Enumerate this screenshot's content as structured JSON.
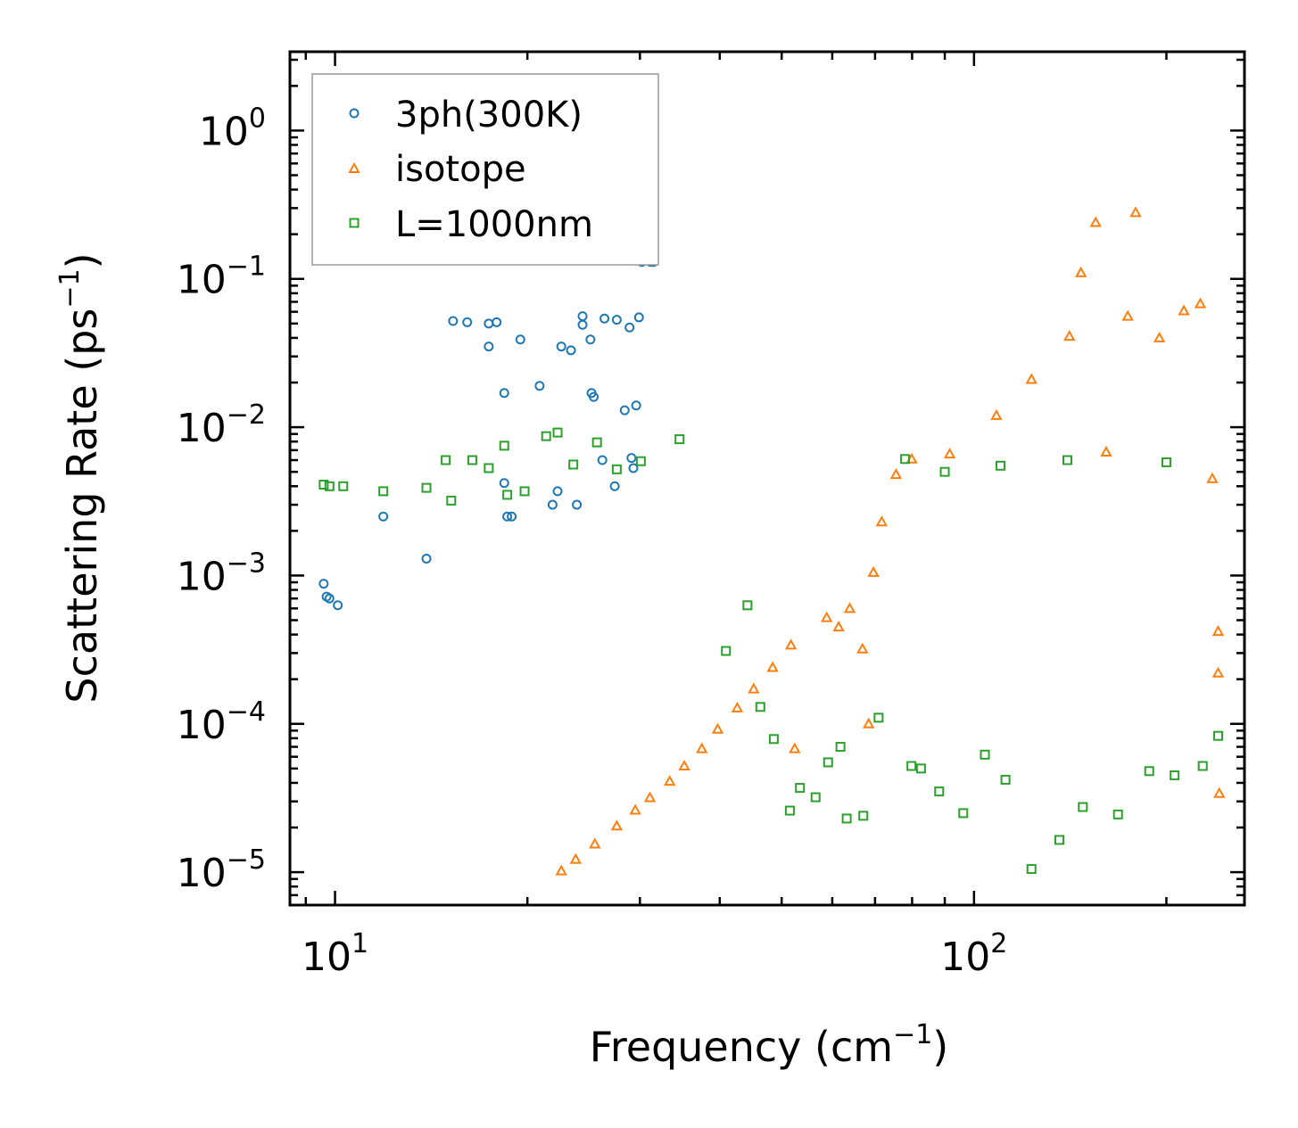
{
  "chart_data": {
    "type": "scatter",
    "xscale": "log",
    "yscale": "log",
    "xlim": [
      8.5,
      265
    ],
    "ylim": [
      6e-06,
      3.4
    ],
    "xlabel": {
      "text": "Frequency (cm",
      "sup": "−1",
      "close": ")"
    },
    "ylabel": {
      "text": "Scattering Rate (ps",
      "sup": "−1",
      "close": ")"
    },
    "x_ticks": [
      {
        "value": 10,
        "base": "10",
        "exp": "1"
      },
      {
        "value": 100,
        "base": "10",
        "exp": "2"
      }
    ],
    "y_ticks": [
      {
        "value": 1,
        "base": "10",
        "exp": "0"
      },
      {
        "value": 0.1,
        "base": "10",
        "exp": "−1"
      },
      {
        "value": 0.01,
        "base": "10",
        "exp": "−2"
      },
      {
        "value": 0.001,
        "base": "10",
        "exp": "−3"
      },
      {
        "value": 0.0001,
        "base": "10",
        "exp": "−4"
      },
      {
        "value": 1e-05,
        "base": "10",
        "exp": "−5"
      }
    ],
    "legend_position": "top-left",
    "series": [
      {
        "name": "3ph(300K)",
        "color": "#1f77b4",
        "marker": "circle",
        "points": [
          [
            9.6,
            0.00088
          ],
          [
            9.7,
            0.00072
          ],
          [
            9.8,
            0.0007
          ],
          [
            10.1,
            0.00063
          ],
          [
            11.9,
            0.0025
          ],
          [
            13.9,
            0.0013
          ],
          [
            15.3,
            0.052
          ],
          [
            16.1,
            0.051
          ],
          [
            17.4,
            0.05
          ],
          [
            17.9,
            0.051
          ],
          [
            17.4,
            0.035
          ],
          [
            18.4,
            0.017
          ],
          [
            18.4,
            0.0042
          ],
          [
            18.6,
            0.0025
          ],
          [
            18.9,
            0.0025
          ],
          [
            19.5,
            0.039
          ],
          [
            20.9,
            0.019
          ],
          [
            21.9,
            0.003
          ],
          [
            22.3,
            0.0037
          ],
          [
            22.6,
            0.035
          ],
          [
            23.4,
            0.033
          ],
          [
            24.4,
            0.056
          ],
          [
            24.4,
            0.049
          ],
          [
            25.1,
            0.039
          ],
          [
            25.2,
            0.017
          ],
          [
            25.4,
            0.016
          ],
          [
            26.4,
            0.054
          ],
          [
            27.6,
            0.053
          ],
          [
            28.4,
            0.013
          ],
          [
            28.9,
            0.047
          ],
          [
            29.1,
            0.0062
          ],
          [
            29.3,
            0.0053
          ],
          [
            29.6,
            0.014
          ],
          [
            29.9,
            0.055
          ],
          [
            30.2,
            0.13
          ],
          [
            30.6,
            0.14
          ],
          [
            31.2,
            0.13
          ],
          [
            31.5,
            0.13
          ],
          [
            23.9,
            0.003
          ],
          [
            26.2,
            0.006
          ],
          [
            27.4,
            0.004
          ]
        ]
      },
      {
        "name": "isotope",
        "color": "#ff7f0e",
        "marker": "triangle",
        "points": [
          [
            22.6,
            1.02e-05
          ],
          [
            23.8,
            1.22e-05
          ],
          [
            25.5,
            1.55e-05
          ],
          [
            27.6,
            2.05e-05
          ],
          [
            29.5,
            2.62e-05
          ],
          [
            31.1,
            3.18e-05
          ],
          [
            33.4,
            4.1e-05
          ],
          [
            35.2,
            5.2e-05
          ],
          [
            37.5,
            6.8e-05
          ],
          [
            39.7,
            9.2e-05
          ],
          [
            42.6,
            0.000128
          ],
          [
            45.2,
            0.000172
          ],
          [
            48.4,
            0.00024
          ],
          [
            51.7,
            0.00034
          ],
          [
            52.4,
            6.8e-05
          ],
          [
            58.8,
            0.00052
          ],
          [
            61.4,
            0.00045
          ],
          [
            63.9,
            0.0006
          ],
          [
            66.9,
            0.00032
          ],
          [
            68.4,
            0.0001
          ],
          [
            69.6,
            0.00105
          ],
          [
            71.7,
            0.0023
          ],
          [
            75.5,
            0.0048
          ],
          [
            79.9,
            0.0061
          ],
          [
            91.6,
            0.0066
          ],
          [
            108.4,
            0.012
          ],
          [
            123,
            0.021
          ],
          [
            141,
            0.041
          ],
          [
            147,
            0.11
          ],
          [
            155,
            0.24
          ],
          [
            161,
            0.0068
          ],
          [
            174,
            0.056
          ],
          [
            179,
            0.28
          ],
          [
            195,
            0.04
          ],
          [
            213,
            0.061
          ],
          [
            226,
            0.068
          ],
          [
            236,
            0.0045
          ],
          [
            241,
            0.00042
          ],
          [
            241,
            0.00022
          ],
          [
            242,
            3.4e-05
          ]
        ]
      },
      {
        "name": "L=1000nm",
        "color": "#2ca02c",
        "marker": "square",
        "points": [
          [
            9.6,
            0.0041
          ],
          [
            9.8,
            0.004
          ],
          [
            10.3,
            0.004
          ],
          [
            11.9,
            0.0037
          ],
          [
            13.9,
            0.0039
          ],
          [
            14.9,
            0.006
          ],
          [
            15.2,
            0.0032
          ],
          [
            16.4,
            0.006
          ],
          [
            17.4,
            0.0053
          ],
          [
            18.4,
            0.0075
          ],
          [
            18.6,
            0.0035
          ],
          [
            19.8,
            0.0037
          ],
          [
            21.4,
            0.0087
          ],
          [
            22.3,
            0.0092
          ],
          [
            23.6,
            0.0056
          ],
          [
            25.7,
            0.0079
          ],
          [
            27.6,
            0.0052
          ],
          [
            30.1,
            0.0059
          ],
          [
            34.6,
            0.0083
          ],
          [
            40.9,
            0.00031
          ],
          [
            44.2,
            0.00063
          ],
          [
            46.3,
            0.00013
          ],
          [
            48.6,
            7.9e-05
          ],
          [
            51.5,
            2.6e-05
          ],
          [
            53.4,
            3.7e-05
          ],
          [
            56.5,
            3.2e-05
          ],
          [
            59.1,
            5.5e-05
          ],
          [
            61.8,
            7e-05
          ],
          [
            63.2,
            2.3e-05
          ],
          [
            67.1,
            2.4e-05
          ],
          [
            70.9,
            0.00011
          ],
          [
            79.8,
            5.2e-05
          ],
          [
            82.6,
            5e-05
          ],
          [
            88.2,
            3.5e-05
          ],
          [
            96.2,
            2.5e-05
          ],
          [
            104,
            6.2e-05
          ],
          [
            112,
            4.2e-05
          ],
          [
            123,
            1.05e-05
          ],
          [
            136,
            1.65e-05
          ],
          [
            148,
            2.75e-05
          ],
          [
            168,
            2.45e-05
          ],
          [
            188,
            4.8e-05
          ],
          [
            206,
            4.5e-05
          ],
          [
            228,
            5.2e-05
          ],
          [
            241,
            8.3e-05
          ],
          [
            78,
            0.0061
          ],
          [
            90,
            0.005
          ],
          [
            110,
            0.0055
          ],
          [
            140,
            0.006
          ],
          [
            200,
            0.0058
          ]
        ]
      }
    ]
  },
  "legend": {
    "items": [
      {
        "label": "3ph(300K)",
        "color": "#1f77b4",
        "marker": "circle"
      },
      {
        "label": "isotope",
        "color": "#ff7f0e",
        "marker": "triangle"
      },
      {
        "label": "L=1000nm",
        "color": "#2ca02c",
        "marker": "square"
      }
    ]
  }
}
